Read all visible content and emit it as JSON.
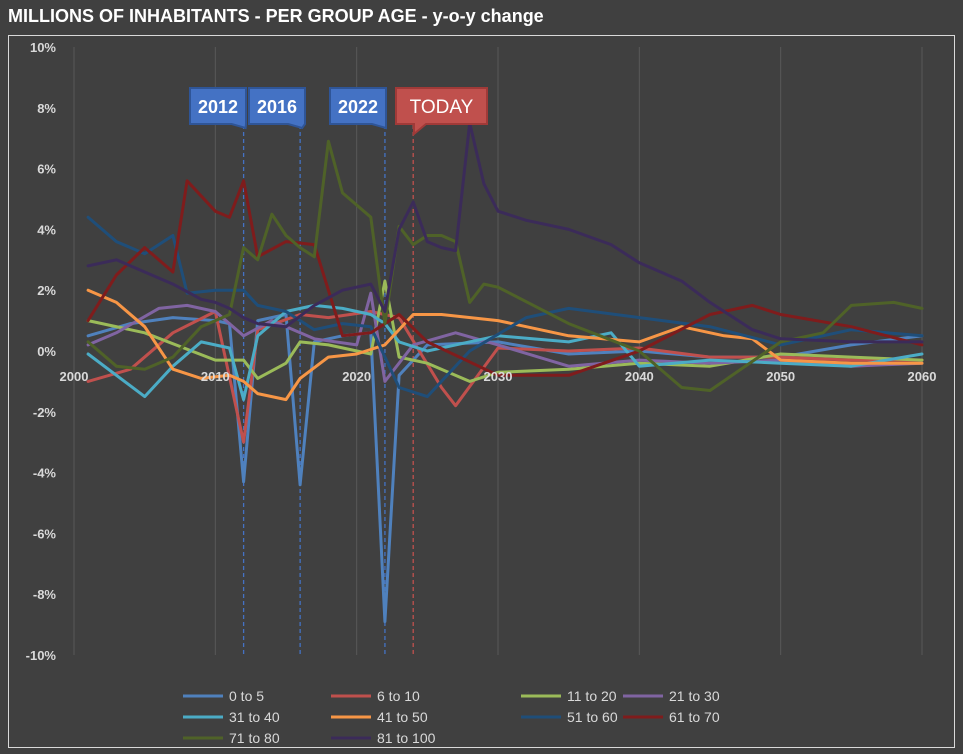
{
  "chart_data": {
    "type": "line",
    "title": "MILLIONS OF INHABITANTS - PER GROUP AGE - y-o-y change",
    "x_ticks": [
      2000,
      2010,
      2020,
      2030,
      2040,
      2050,
      2060
    ],
    "y_ticks": [
      "10%",
      "8%",
      "6%",
      "4%",
      "2%",
      "0%",
      "-2%",
      "-4%",
      "-6%",
      "-8%",
      "-10%"
    ],
    "y_tick_values": [
      10,
      8,
      6,
      4,
      2,
      0,
      -2,
      -4,
      -6,
      -8,
      -10
    ],
    "xlim": [
      2000,
      2060
    ],
    "ylim": [
      -10,
      10
    ],
    "grid": "vertical",
    "legend_position": "bottom",
    "annotations": [
      {
        "label": "2012",
        "x": 2012,
        "color": "#4472c4"
      },
      {
        "label": "2016",
        "x": 2016,
        "color": "#4472c4"
      },
      {
        "label": "2022",
        "x": 2022,
        "color": "#4472c4"
      },
      {
        "label": "TODAY",
        "x": 2024,
        "color": "#c0504d"
      }
    ],
    "series": [
      {
        "name": "0 to 5",
        "color": "#4f81bd",
        "x": [
          2001,
          2004,
          2007,
          2010,
          2011,
          2012,
          2013,
          2015,
          2016,
          2017,
          2019,
          2021,
          2022,
          2023,
          2025,
          2030,
          2035,
          2040,
          2045,
          2050,
          2055,
          2060
        ],
        "y": [
          0.5,
          0.9,
          1.1,
          1.0,
          0.9,
          -4.3,
          1.0,
          1.2,
          -4.4,
          0.3,
          0.5,
          0.6,
          -8.9,
          -0.8,
          0.2,
          0.3,
          -0.1,
          0.0,
          -0.2,
          -0.2,
          0.2,
          0.5
        ]
      },
      {
        "name": "6 to 10",
        "color": "#c0504d",
        "x": [
          2001,
          2004,
          2007,
          2010,
          2012,
          2013,
          2016,
          2018,
          2021,
          2023,
          2026,
          2027,
          2030,
          2035,
          2040,
          2045,
          2050,
          2055,
          2060
        ],
        "y": [
          -1.0,
          -0.6,
          0.6,
          1.3,
          -3.0,
          0.7,
          1.2,
          1.1,
          1.3,
          1.1,
          -1.2,
          -1.8,
          0.1,
          0.0,
          0.1,
          -0.2,
          -0.2,
          -0.3,
          -0.3
        ]
      },
      {
        "name": "11 to 20",
        "color": "#9bbb59",
        "x": [
          2001,
          2005,
          2010,
          2012,
          2013,
          2015,
          2016,
          2018,
          2021,
          2022,
          2023,
          2025,
          2028,
          2030,
          2035,
          2040,
          2045,
          2050,
          2055,
          2060
        ],
        "y": [
          1.0,
          0.6,
          -0.3,
          -0.3,
          -0.9,
          -0.4,
          0.3,
          0.2,
          -0.1,
          2.3,
          -0.2,
          -0.4,
          -1.0,
          -0.7,
          -0.6,
          -0.4,
          -0.5,
          -0.1,
          -0.2,
          -0.3
        ]
      },
      {
        "name": "21 to 30",
        "color": "#8064a2",
        "x": [
          2001,
          2003,
          2006,
          2008,
          2010,
          2012,
          2014,
          2017,
          2020,
          2021,
          2022,
          2024,
          2027,
          2030,
          2035,
          2040,
          2045,
          2050,
          2055,
          2060
        ],
        "y": [
          0.2,
          0.6,
          1.4,
          1.5,
          1.3,
          0.5,
          1.0,
          0.4,
          0.2,
          1.9,
          -1.0,
          0.2,
          0.6,
          0.2,
          -0.5,
          -0.3,
          -0.4,
          -0.3,
          -0.5,
          -0.4
        ]
      },
      {
        "name": "31 to 40",
        "color": "#4bacc6",
        "x": [
          2001,
          2003,
          2005,
          2007,
          2009,
          2011,
          2012,
          2013,
          2015,
          2017,
          2019,
          2021,
          2022,
          2023,
          2025,
          2030,
          2035,
          2038,
          2040,
          2045,
          2050,
          2055,
          2060
        ],
        "y": [
          -0.1,
          -0.8,
          -1.5,
          -0.5,
          0.3,
          0.1,
          -1.6,
          0.5,
          1.3,
          1.5,
          1.4,
          1.2,
          0.9,
          0.3,
          0.0,
          0.5,
          0.3,
          0.6,
          -0.5,
          -0.3,
          -0.4,
          -0.5,
          -0.1
        ]
      },
      {
        "name": "41 to 50",
        "color": "#f79646",
        "x": [
          2001,
          2003,
          2005,
          2007,
          2009,
          2011,
          2012,
          2013,
          2015,
          2016,
          2018,
          2020,
          2022,
          2024,
          2026,
          2030,
          2035,
          2040,
          2043,
          2046,
          2048,
          2050,
          2055,
          2060
        ],
        "y": [
          2.0,
          1.6,
          0.8,
          -0.6,
          -0.9,
          -0.8,
          -1.0,
          -1.4,
          -1.6,
          -0.9,
          -0.2,
          -0.1,
          0.2,
          1.2,
          1.2,
          1.0,
          0.5,
          0.3,
          0.8,
          0.5,
          0.4,
          -0.3,
          -0.4,
          -0.4
        ]
      },
      {
        "name": "51 to 60",
        "color": "#1f4e79",
        "x": [
          2001,
          2003,
          2005,
          2007,
          2008,
          2010,
          2012,
          2013,
          2015,
          2017,
          2019,
          2021,
          2023,
          2025,
          2028,
          2032,
          2035,
          2040,
          2045,
          2050,
          2055,
          2060
        ],
        "y": [
          4.4,
          3.6,
          3.2,
          3.8,
          1.9,
          2.0,
          2.0,
          1.5,
          1.3,
          0.7,
          0.9,
          0.8,
          -1.2,
          -1.5,
          0.0,
          1.1,
          1.4,
          1.1,
          0.8,
          0.2,
          0.7,
          0.5
        ]
      },
      {
        "name": "61 to 70",
        "color": "#7f1c1c",
        "x": [
          2001,
          2003,
          2005,
          2007,
          2008,
          2010,
          2011,
          2012,
          2013,
          2015,
          2017,
          2019,
          2021,
          2023,
          2025,
          2030,
          2035,
          2040,
          2045,
          2048,
          2050,
          2055,
          2060
        ],
        "y": [
          1.0,
          2.5,
          3.4,
          2.6,
          5.6,
          4.6,
          4.4,
          5.6,
          3.1,
          3.6,
          3.5,
          0.5,
          0.6,
          1.2,
          0.3,
          -0.8,
          -0.8,
          0.0,
          1.2,
          1.5,
          1.2,
          0.8,
          0.2
        ]
      },
      {
        "name": "71 to 80",
        "color": "#4f6228",
        "x": [
          2001,
          2003,
          2005,
          2007,
          2009,
          2011,
          2012,
          2013,
          2014,
          2015,
          2016,
          2017,
          2018,
          2019,
          2021,
          2022,
          2023,
          2024,
          2025,
          2026,
          2027,
          2028,
          2029,
          2030,
          2035,
          2040,
          2043,
          2045,
          2050,
          2053,
          2055,
          2058,
          2060
        ],
        "y": [
          0.3,
          -0.5,
          -0.6,
          -0.2,
          0.8,
          1.2,
          3.4,
          3.0,
          4.5,
          3.8,
          3.4,
          3.1,
          6.9,
          5.2,
          4.4,
          0.9,
          4.1,
          3.5,
          3.8,
          3.8,
          3.6,
          1.6,
          2.2,
          2.1,
          0.9,
          0.0,
          -1.2,
          -1.3,
          0.3,
          0.6,
          1.5,
          1.6,
          1.4
        ]
      },
      {
        "name": "81 to 100",
        "color": "#3b2b59",
        "x": [
          2001,
          2003,
          2005,
          2007,
          2009,
          2010,
          2011,
          2012,
          2013,
          2015,
          2017,
          2019,
          2021,
          2022,
          2023,
          2024,
          2025,
          2026,
          2027,
          2028,
          2029,
          2030,
          2032,
          2035,
          2038,
          2040,
          2043,
          2045,
          2048,
          2050,
          2055,
          2060
        ],
        "y": [
          2.8,
          3.0,
          2.6,
          2.2,
          1.7,
          1.6,
          1.4,
          1.1,
          0.9,
          0.8,
          1.5,
          2.0,
          2.2,
          1.3,
          4.0,
          4.9,
          3.6,
          3.4,
          3.3,
          7.5,
          5.5,
          4.6,
          4.3,
          4.0,
          3.5,
          2.9,
          2.3,
          1.6,
          0.7,
          0.4,
          0.3,
          0.3
        ]
      }
    ]
  }
}
